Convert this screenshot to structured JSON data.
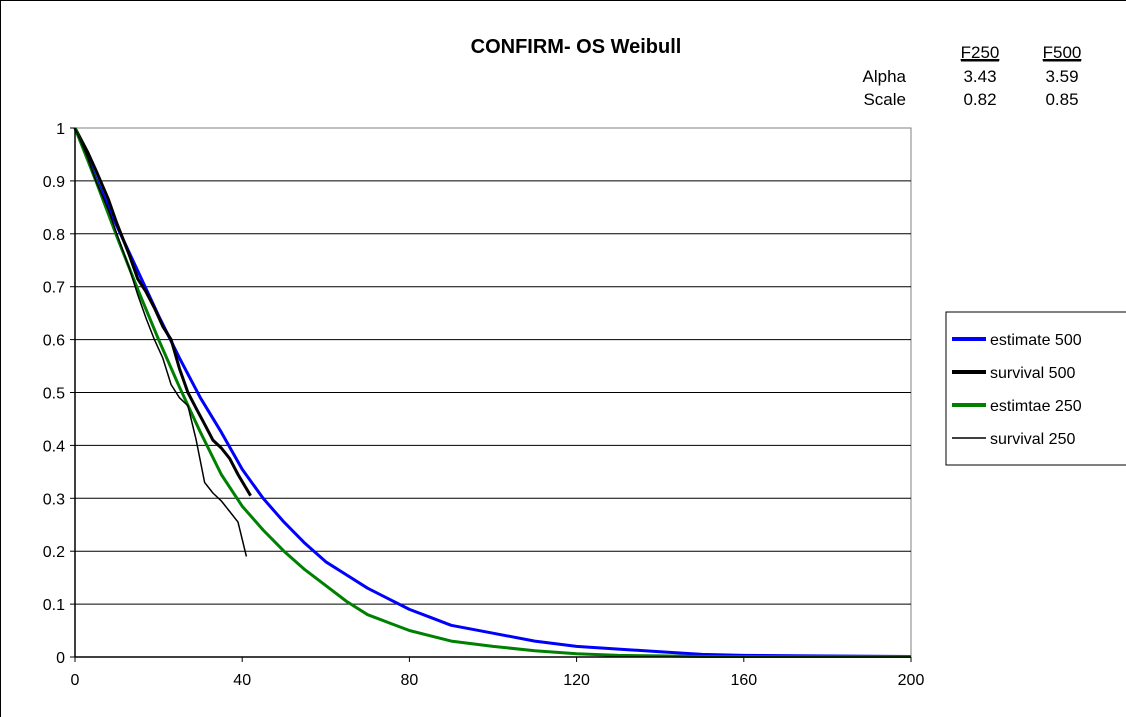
{
  "chart_data": {
    "type": "line",
    "title": "CONFIRM- OS Weibull",
    "xlabel": "",
    "ylabel": "",
    "xlim": [
      0,
      200
    ],
    "ylim": [
      0,
      1
    ],
    "xticks": [
      "0",
      "40",
      "80",
      "120",
      "160",
      "200"
    ],
    "yticks": [
      "0",
      "0.1",
      "0.2",
      "0.3",
      "0.4",
      "0.5",
      "0.6",
      "0.7",
      "0.8",
      "0.9",
      "1"
    ],
    "grid": {
      "horizontal": true,
      "vertical": false
    },
    "legend_position": "right",
    "parameter_table": {
      "columns": [
        "F250",
        "F500"
      ],
      "rows": [
        {
          "label": "Alpha",
          "values": [
            "3.43",
            "3.59"
          ]
        },
        {
          "label": "Scale",
          "values": [
            "0.82",
            "0.85"
          ]
        }
      ]
    },
    "series": [
      {
        "name": "estimate 500",
        "color": "#0000FF",
        "style": "thick",
        "points": [
          [
            0,
            1
          ],
          [
            5,
            0.905
          ],
          [
            10,
            0.815
          ],
          [
            15,
            0.73
          ],
          [
            20,
            0.645
          ],
          [
            25,
            0.565
          ],
          [
            30,
            0.49
          ],
          [
            35,
            0.425
          ],
          [
            40,
            0.355
          ],
          [
            45,
            0.3
          ],
          [
            50,
            0.255
          ],
          [
            55,
            0.215
          ],
          [
            60,
            0.18
          ],
          [
            65,
            0.155
          ],
          [
            70,
            0.13
          ],
          [
            75,
            0.11
          ],
          [
            80,
            0.09
          ],
          [
            85,
            0.075
          ],
          [
            90,
            0.06
          ],
          [
            100,
            0.045
          ],
          [
            110,
            0.03
          ],
          [
            120,
            0.02
          ],
          [
            130,
            0.015
          ],
          [
            140,
            0.01
          ],
          [
            150,
            0.005
          ],
          [
            160,
            0.003
          ],
          [
            176,
            0.002
          ],
          [
            200,
            0.001
          ]
        ]
      },
      {
        "name": "survival 500",
        "color": "#000000",
        "style": "thick",
        "points": [
          [
            0,
            1
          ],
          [
            3,
            0.955
          ],
          [
            5,
            0.92
          ],
          [
            8,
            0.865
          ],
          [
            10,
            0.82
          ],
          [
            13,
            0.76
          ],
          [
            15,
            0.715
          ],
          [
            17,
            0.69
          ],
          [
            19,
            0.66
          ],
          [
            21,
            0.625
          ],
          [
            23,
            0.6
          ],
          [
            25,
            0.545
          ],
          [
            27,
            0.5
          ],
          [
            29,
            0.47
          ],
          [
            31,
            0.44
          ],
          [
            33,
            0.41
          ],
          [
            35,
            0.395
          ],
          [
            37,
            0.375
          ],
          [
            39,
            0.345
          ],
          [
            42,
            0.305
          ]
        ]
      },
      {
        "name": "estimtae 250",
        "color": "#008000",
        "style": "thick",
        "points": [
          [
            0,
            1
          ],
          [
            5,
            0.9
          ],
          [
            10,
            0.795
          ],
          [
            15,
            0.695
          ],
          [
            20,
            0.6
          ],
          [
            25,
            0.51
          ],
          [
            30,
            0.425
          ],
          [
            35,
            0.345
          ],
          [
            40,
            0.285
          ],
          [
            45,
            0.24
          ],
          [
            50,
            0.2
          ],
          [
            55,
            0.165
          ],
          [
            60,
            0.135
          ],
          [
            65,
            0.105
          ],
          [
            70,
            0.08
          ],
          [
            75,
            0.065
          ],
          [
            80,
            0.05
          ],
          [
            85,
            0.04
          ],
          [
            90,
            0.03
          ],
          [
            100,
            0.02
          ],
          [
            110,
            0.012
          ],
          [
            120,
            0.006
          ],
          [
            130,
            0.003
          ],
          [
            140,
            0.002
          ],
          [
            150,
            0.001
          ],
          [
            200,
            0.001
          ]
        ]
      },
      {
        "name": "survival 250",
        "color": "#000000",
        "style": "thin",
        "points": [
          [
            0,
            1
          ],
          [
            3,
            0.945
          ],
          [
            5,
            0.9
          ],
          [
            8,
            0.845
          ],
          [
            10,
            0.8
          ],
          [
            13,
            0.735
          ],
          [
            15,
            0.685
          ],
          [
            17,
            0.64
          ],
          [
            19,
            0.6
          ],
          [
            21,
            0.565
          ],
          [
            23,
            0.515
          ],
          [
            25,
            0.49
          ],
          [
            27,
            0.475
          ],
          [
            29,
            0.41
          ],
          [
            31,
            0.33
          ],
          [
            33,
            0.31
          ],
          [
            35,
            0.295
          ],
          [
            37,
            0.275
          ],
          [
            39,
            0.255
          ],
          [
            41,
            0.19
          ]
        ]
      }
    ]
  }
}
